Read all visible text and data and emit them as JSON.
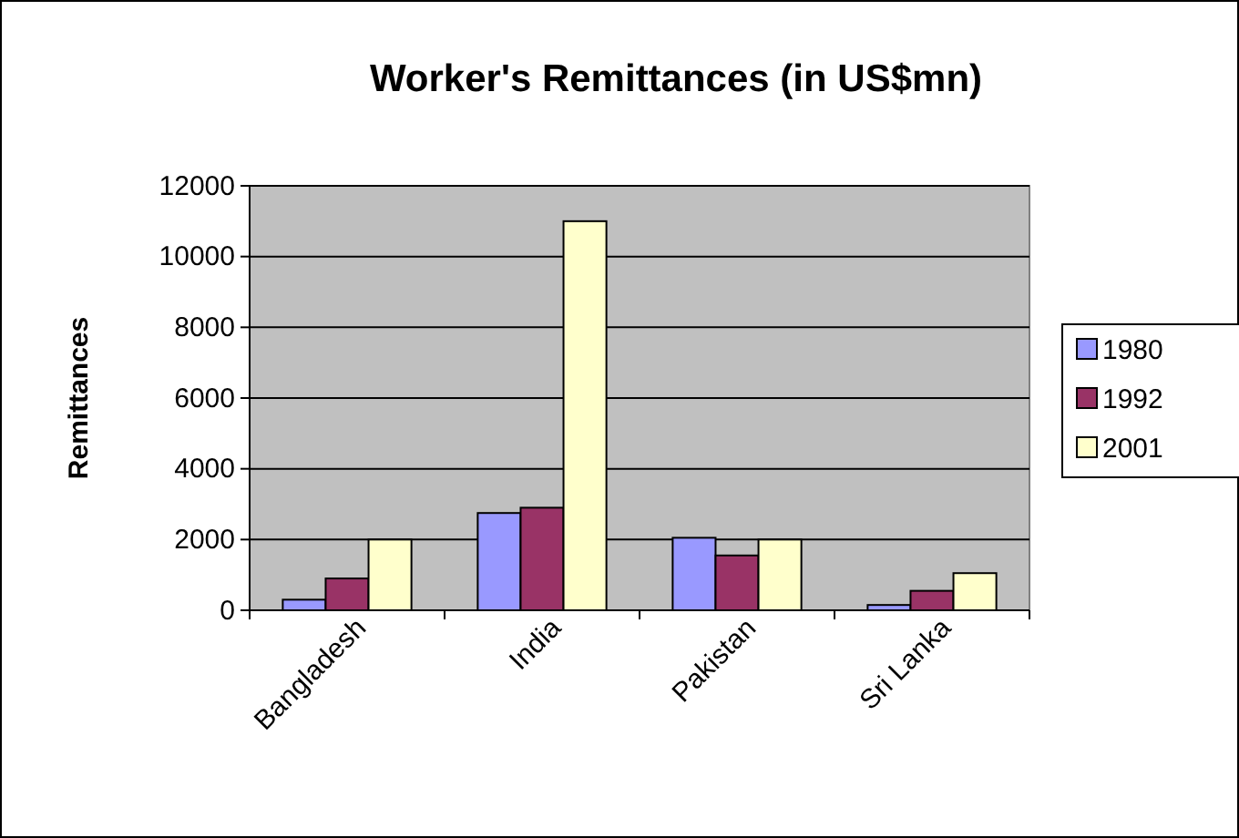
{
  "chart_data": {
    "type": "bar",
    "title": "Worker's Remittances (in US$mn)",
    "ylabel": "Remittances",
    "categories": [
      "Bangladesh",
      "India",
      "Pakistan",
      "Sri Lanka"
    ],
    "series": [
      {
        "name": "1980",
        "color": "#9999ff",
        "values": [
          300,
          2750,
          2050,
          150
        ]
      },
      {
        "name": "1992",
        "color": "#993366",
        "values": [
          900,
          2900,
          1550,
          550
        ]
      },
      {
        "name": "2001",
        "color": "#ffffcc",
        "values": [
          2000,
          11000,
          2000,
          1050
        ]
      }
    ],
    "ylim": [
      0,
      12000
    ],
    "yticks": [
      0,
      2000,
      4000,
      6000,
      8000,
      10000,
      12000
    ],
    "grid": "y",
    "legend": "right"
  }
}
